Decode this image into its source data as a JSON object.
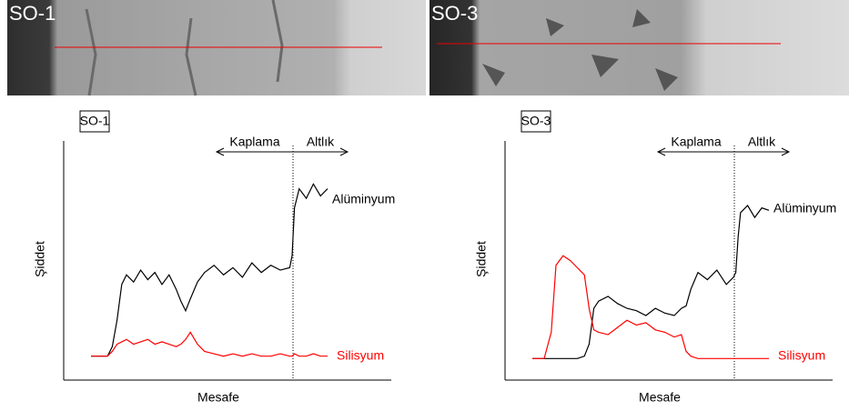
{
  "images": [
    {
      "label": "SO-1"
    },
    {
      "label": "SO-3"
    }
  ],
  "chart_data": [
    {
      "type": "line",
      "label": "SO-1",
      "y_label": "Şiddet",
      "x_label": "Mesafe",
      "annotations": [
        "Kaplama",
        "Altlık"
      ],
      "x": [
        0,
        7,
        9,
        11,
        13,
        15,
        18,
        21,
        24,
        27,
        30,
        33,
        36,
        38,
        40,
        42,
        45,
        48,
        52,
        56,
        60,
        64,
        68,
        72,
        76,
        80,
        84,
        85,
        86,
        88,
        91,
        94,
        97,
        100
      ],
      "series": [
        {
          "name": "Alüminyum",
          "color": "#000000",
          "values": [
            10,
            10,
            14,
            25,
            40,
            44,
            41,
            46,
            42,
            45,
            40,
            44,
            38,
            33,
            29,
            34,
            41,
            45,
            48,
            44,
            47,
            43,
            49,
            45,
            48,
            46,
            47,
            52,
            72,
            80,
            76,
            82,
            77,
            80
          ]
        },
        {
          "name": "Silisyum",
          "color": "#ff0000",
          "values": [
            10,
            10,
            12,
            15,
            16,
            17,
            15,
            16,
            17,
            15,
            16,
            15,
            14,
            15,
            17,
            20,
            15,
            12,
            11,
            10,
            11,
            10,
            11,
            10,
            10,
            11,
            10,
            10,
            11,
            10,
            10,
            11,
            10,
            10
          ]
        }
      ]
    },
    {
      "type": "line",
      "label": "SO-3",
      "y_label": "Şiddet",
      "x_label": "Mesafe",
      "annotations": [
        "Kaplama",
        "Altlık"
      ],
      "x": [
        0,
        5,
        8,
        10,
        13,
        16,
        19,
        22,
        24,
        26,
        28,
        32,
        36,
        40,
        44,
        48,
        52,
        56,
        60,
        63,
        65,
        67,
        70,
        74,
        78,
        82,
        85,
        86,
        87,
        88,
        91,
        94,
        97,
        100
      ],
      "series": [
        {
          "name": "Alüminyum",
          "color": "#000000",
          "values": [
            9,
            9,
            9,
            9,
            9,
            9,
            9,
            10,
            15,
            30,
            33,
            35,
            32,
            30,
            29,
            27,
            30,
            28,
            27,
            30,
            31,
            38,
            45,
            42,
            46,
            40,
            43,
            45,
            60,
            70,
            73,
            68,
            72,
            71
          ]
        },
        {
          "name": "Silisyum",
          "color": "#ff0000",
          "values": [
            9,
            9,
            20,
            48,
            52,
            50,
            47,
            44,
            30,
            21,
            20,
            19,
            22,
            25,
            23,
            24,
            21,
            20,
            18,
            19,
            12,
            10,
            9,
            9,
            9,
            9,
            9,
            9,
            9,
            9,
            9,
            9,
            9,
            9
          ]
        }
      ]
    }
  ]
}
